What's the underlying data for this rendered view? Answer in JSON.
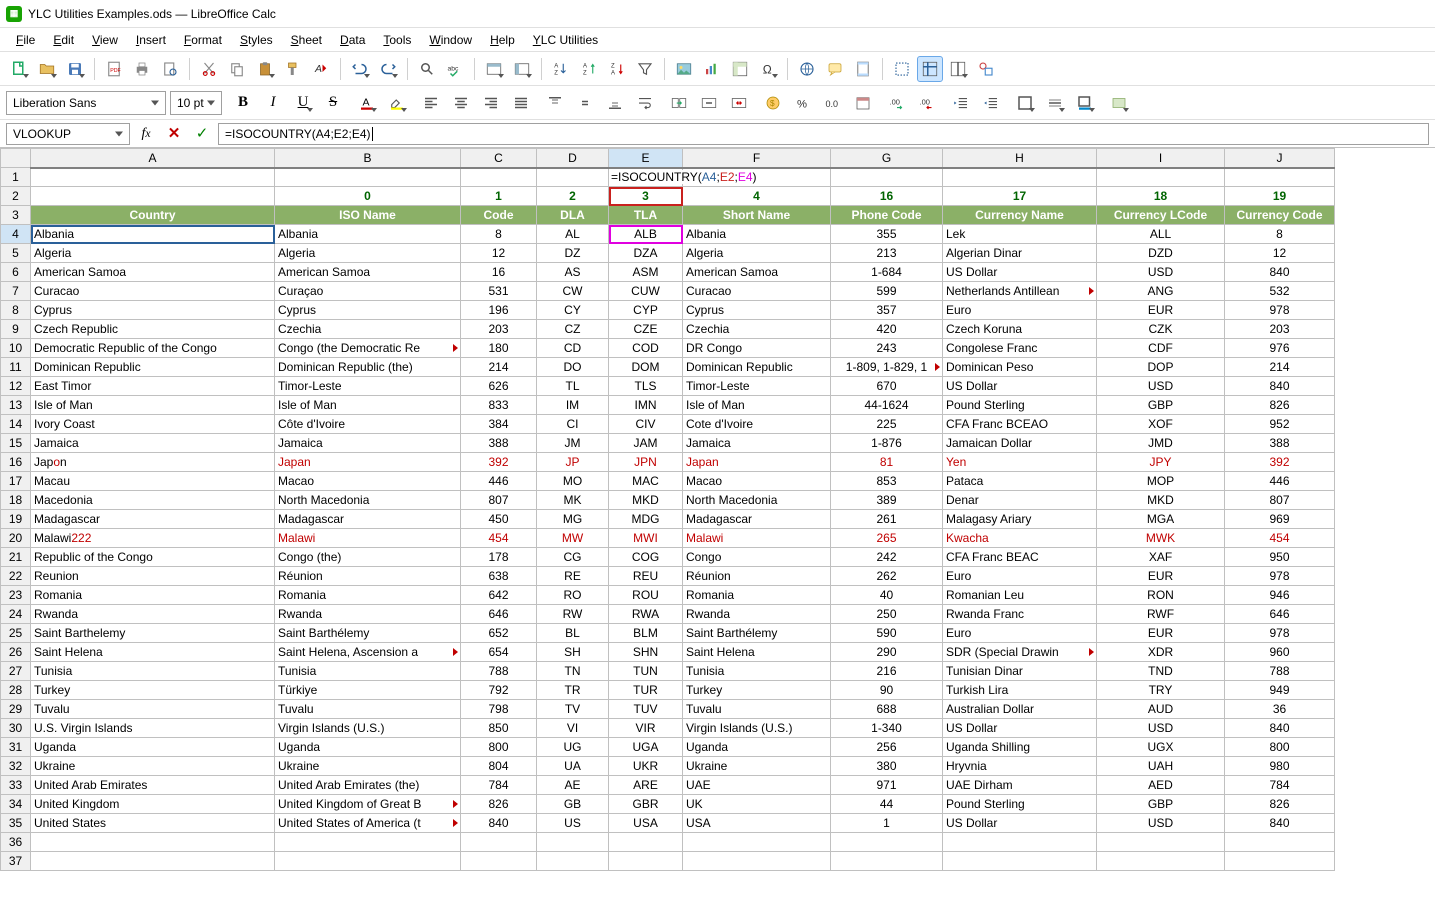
{
  "window": {
    "title": "YLC Utilities Examples.ods — LibreOffice Calc"
  },
  "menu": [
    "File",
    "Edit",
    "View",
    "Insert",
    "Format",
    "Styles",
    "Sheet",
    "Data",
    "Tools",
    "Window",
    "Help",
    "YLC Utilities"
  ],
  "font": {
    "name": "Liberation Sans",
    "size": "10 pt"
  },
  "namebox": "VLOOKUP",
  "formula": {
    "raw": "=ISOCOUNTRY(A4;E2;E4)",
    "prefix": "=ISOCOUNTRY(",
    "a": "A4",
    "s1": ";",
    "b": "E2",
    "s2": ";",
    "c": "E4",
    "suffix": ")"
  },
  "columns": [
    "A",
    "B",
    "C",
    "D",
    "E",
    "F",
    "G",
    "H",
    "I",
    "J"
  ],
  "row2": [
    "",
    "0",
    "1",
    "2",
    "3",
    "4",
    "16",
    "17",
    "18",
    "19"
  ],
  "row3": [
    "Country",
    "ISO Name",
    "Code",
    "DLA",
    "TLA",
    "Short Name",
    "Phone Code",
    "Currency Name",
    "Currency LCode",
    "Currency Code"
  ],
  "rows": [
    {
      "n": 4,
      "d": [
        "Albania",
        "Albania",
        "8",
        "AL",
        "ALB",
        "Albania",
        "355",
        "Lek",
        "ALL",
        "8"
      ]
    },
    {
      "n": 5,
      "d": [
        "Algeria",
        "Algeria",
        "12",
        "DZ",
        "DZA",
        "Algeria",
        "213",
        "Algerian Dinar",
        "DZD",
        "12"
      ]
    },
    {
      "n": 6,
      "d": [
        "American Samoa",
        "American Samoa",
        "16",
        "AS",
        "ASM",
        "American Samoa",
        "1-684",
        "US Dollar",
        "USD",
        "840"
      ]
    },
    {
      "n": 7,
      "d": [
        "Curacao",
        "Curaçao",
        "531",
        "CW",
        "CUW",
        "Curacao",
        "599",
        "Netherlands Antillean",
        "ANG",
        "532"
      ],
      "trunc": [
        7
      ]
    },
    {
      "n": 8,
      "d": [
        "Cyprus",
        "Cyprus",
        "196",
        "CY",
        "CYP",
        "Cyprus",
        "357",
        "Euro",
        "EUR",
        "978"
      ]
    },
    {
      "n": 9,
      "d": [
        "Czech Republic",
        "Czechia",
        "203",
        "CZ",
        "CZE",
        "Czechia",
        "420",
        "Czech Koruna",
        "CZK",
        "203"
      ]
    },
    {
      "n": 10,
      "d": [
        "Democratic Republic of the Congo",
        "Congo (the Democratic Re",
        "180",
        "CD",
        "COD",
        "DR Congo",
        "243",
        "Congolese Franc",
        "CDF",
        "976"
      ],
      "trunc": [
        1
      ]
    },
    {
      "n": 11,
      "d": [
        "Dominican Republic",
        "Dominican Republic (the)",
        "214",
        "DO",
        "DOM",
        "Dominican Republic",
        "1-809, 1-829, 1",
        "Dominican Peso",
        "DOP",
        "214"
      ],
      "trunc": [
        6
      ]
    },
    {
      "n": 12,
      "d": [
        "East Timor",
        "Timor-Leste",
        "626",
        "TL",
        "TLS",
        "Timor-Leste",
        "670",
        "US Dollar",
        "USD",
        "840"
      ]
    },
    {
      "n": 13,
      "d": [
        "Isle of Man",
        "Isle of Man",
        "833",
        "IM",
        "IMN",
        "Isle of Man",
        "44-1624",
        "Pound Sterling",
        "GBP",
        "826"
      ]
    },
    {
      "n": 14,
      "d": [
        "Ivory Coast",
        "Côte d'Ivoire",
        "384",
        "CI",
        "CIV",
        "Cote d'Ivoire",
        "225",
        "CFA Franc BCEAO",
        "XOF",
        "952"
      ]
    },
    {
      "n": 15,
      "d": [
        "Jamaica",
        "Jamaica",
        "388",
        "JM",
        "JAM",
        "Jamaica",
        "1-876",
        "Jamaican Dollar",
        "JMD",
        "388"
      ]
    },
    {
      "n": 16,
      "d": [
        "Japon",
        "Japan",
        "392",
        "JP",
        "JPN",
        "Japan",
        "81",
        "Yen",
        "JPY",
        "392"
      ],
      "red": true,
      "aHtml": "Jap<span class='redspan'>o</span>n"
    },
    {
      "n": 17,
      "d": [
        "Macau",
        "Macao",
        "446",
        "MO",
        "MAC",
        "Macao",
        "853",
        "Pataca",
        "MOP",
        "446"
      ]
    },
    {
      "n": 18,
      "d": [
        "Macedonia",
        "North Macedonia",
        "807",
        "MK",
        "MKD",
        "North Macedonia",
        "389",
        "Denar",
        "MKD",
        "807"
      ]
    },
    {
      "n": 19,
      "d": [
        "Madagascar",
        "Madagascar",
        "450",
        "MG",
        "MDG",
        "Madagascar",
        "261",
        "Malagasy Ariary",
        "MGA",
        "969"
      ]
    },
    {
      "n": 20,
      "d": [
        "Malawi222",
        "Malawi",
        "454",
        "MW",
        "MWI",
        "Malawi",
        "265",
        "Kwacha",
        "MWK",
        "454"
      ],
      "red": true,
      "aHtml": "Malawi<span class='redspan'>222</span>"
    },
    {
      "n": 21,
      "d": [
        "Republic of the Congo",
        "Congo (the)",
        "178",
        "CG",
        "COG",
        "Congo",
        "242",
        "CFA Franc BEAC",
        "XAF",
        "950"
      ]
    },
    {
      "n": 22,
      "d": [
        "Reunion",
        "Réunion",
        "638",
        "RE",
        "REU",
        "Réunion",
        "262",
        "Euro",
        "EUR",
        "978"
      ]
    },
    {
      "n": 23,
      "d": [
        "Romania",
        "Romania",
        "642",
        "RO",
        "ROU",
        "Romania",
        "40",
        "Romanian Leu",
        "RON",
        "946"
      ]
    },
    {
      "n": 24,
      "d": [
        "Rwanda",
        "Rwanda",
        "646",
        "RW",
        "RWA",
        "Rwanda",
        "250",
        "Rwanda Franc",
        "RWF",
        "646"
      ]
    },
    {
      "n": 25,
      "d": [
        "Saint Barthelemy",
        "Saint Barthélemy",
        "652",
        "BL",
        "BLM",
        "Saint Barthélemy",
        "590",
        "Euro",
        "EUR",
        "978"
      ]
    },
    {
      "n": 26,
      "d": [
        "Saint Helena",
        "Saint Helena, Ascension a",
        "654",
        "SH",
        "SHN",
        "Saint Helena",
        "290",
        "SDR (Special Drawin",
        "XDR",
        "960"
      ],
      "trunc": [
        1,
        7
      ]
    },
    {
      "n": 27,
      "d": [
        "Tunisia",
        "Tunisia",
        "788",
        "TN",
        "TUN",
        "Tunisia",
        "216",
        "Tunisian Dinar",
        "TND",
        "788"
      ]
    },
    {
      "n": 28,
      "d": [
        "Turkey",
        "Türkiye",
        "792",
        "TR",
        "TUR",
        "Turkey",
        "90",
        "Turkish Lira",
        "TRY",
        "949"
      ]
    },
    {
      "n": 29,
      "d": [
        "Tuvalu",
        "Tuvalu",
        "798",
        "TV",
        "TUV",
        "Tuvalu",
        "688",
        "Australian Dollar",
        "AUD",
        "36"
      ]
    },
    {
      "n": 30,
      "d": [
        "U.S. Virgin Islands",
        "Virgin Islands (U.S.)",
        "850",
        "VI",
        "VIR",
        "Virgin Islands (U.S.)",
        "1-340",
        "US Dollar",
        "USD",
        "840"
      ]
    },
    {
      "n": 31,
      "d": [
        "Uganda",
        "Uganda",
        "800",
        "UG",
        "UGA",
        "Uganda",
        "256",
        "Uganda Shilling",
        "UGX",
        "800"
      ]
    },
    {
      "n": 32,
      "d": [
        "Ukraine",
        "Ukraine",
        "804",
        "UA",
        "UKR",
        "Ukraine",
        "380",
        "Hryvnia",
        "UAH",
        "980"
      ]
    },
    {
      "n": 33,
      "d": [
        "United Arab Emirates",
        "United Arab Emirates (the)",
        "784",
        "AE",
        "ARE",
        "UAE",
        "971",
        "UAE Dirham",
        "AED",
        "784"
      ]
    },
    {
      "n": 34,
      "d": [
        "United Kingdom",
        "United Kingdom of Great B",
        "826",
        "GB",
        "GBR",
        "UK",
        "44",
        "Pound Sterling",
        "GBP",
        "826"
      ],
      "trunc": [
        1
      ]
    },
    {
      "n": 35,
      "d": [
        "United States",
        "United States of America (t",
        "840",
        "US",
        "USA",
        "USA",
        "1",
        "US Dollar",
        "USD",
        "840"
      ],
      "trunc": [
        1
      ]
    }
  ],
  "emptyRows": [
    36,
    37
  ],
  "colors": {
    "headerBg": "#8bb067",
    "headerFg": "#ffffff",
    "green": "#006400",
    "red": "#c00000",
    "activeColBg": "#d0e4f5",
    "magenta": "#e000e0",
    "blueRef": "#2a6099",
    "redRef": "#c9211e"
  },
  "activeCell": "E4"
}
